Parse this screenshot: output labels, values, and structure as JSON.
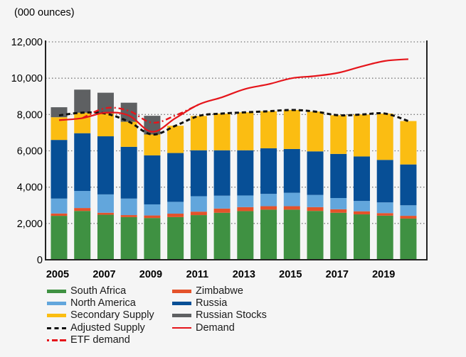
{
  "chart_data": {
    "type": "bar",
    "stacked": true,
    "title": "",
    "unit_label": "(000 ounces)",
    "xlabel": "",
    "ylabel": "(000 ounces)",
    "ylim": [
      0,
      12000
    ],
    "yticks": [
      0,
      2000,
      4000,
      6000,
      8000,
      10000,
      12000
    ],
    "ytick_labels": [
      "0",
      "2,000",
      "4,000",
      "6,000",
      "8,000",
      "10,000",
      "12,000"
    ],
    "categories": [
      "2005",
      "2006",
      "2007",
      "2008",
      "2009",
      "2010",
      "2011",
      "2012",
      "2013",
      "2014",
      "2015",
      "2016",
      "2017",
      "2018",
      "2019",
      "2020"
    ],
    "xtick_labels": [
      "2005",
      "",
      "2007",
      "",
      "2009",
      "",
      "2011",
      "",
      "2013",
      "",
      "2015",
      "",
      "2017",
      "",
      "2019",
      ""
    ],
    "grid": "horizontal-dotted",
    "legend_position": "bottom",
    "series": [
      {
        "name": "South Africa",
        "kind": "bar",
        "color": "#3f9142",
        "values": [
          2420,
          2690,
          2480,
          2350,
          2300,
          2350,
          2460,
          2590,
          2680,
          2760,
          2760,
          2690,
          2590,
          2500,
          2430,
          2270
        ]
      },
      {
        "name": "Zimbabwe",
        "kind": "bar",
        "color": "#e4522a",
        "values": [
          130,
          160,
          110,
          110,
          140,
          190,
          190,
          230,
          220,
          190,
          190,
          210,
          190,
          170,
          140,
          150
        ]
      },
      {
        "name": "North America",
        "kind": "bar",
        "color": "#62a6dc",
        "values": [
          820,
          940,
          1010,
          910,
          610,
          650,
          850,
          710,
          640,
          680,
          740,
          670,
          620,
          570,
          590,
          580
        ]
      },
      {
        "name": "Russia",
        "kind": "bar",
        "color": "#074f96",
        "values": [
          3230,
          3180,
          3200,
          2850,
          2700,
          2690,
          2530,
          2500,
          2490,
          2510,
          2410,
          2400,
          2430,
          2450,
          2340,
          2250
        ]
      },
      {
        "name": "Secondary Supply",
        "kind": "bar",
        "color": "#fbbd12",
        "values": [
          1250,
          1130,
          1250,
          1380,
          1150,
          1500,
          1890,
          2020,
          2090,
          2040,
          2150,
          2190,
          2130,
          2310,
          2550,
          2390
        ]
      },
      {
        "name": "Russian Stocks",
        "kind": "bar",
        "color": "#5e6062",
        "values": [
          550,
          1270,
          1150,
          1050,
          1030,
          0,
          0,
          0,
          0,
          0,
          0,
          0,
          0,
          0,
          0,
          0
        ]
      },
      {
        "name": "Adjusted Supply",
        "kind": "line",
        "style": "dashed",
        "color": "#111111",
        "values": [
          7950,
          8100,
          8050,
          7600,
          6900,
          7380,
          7920,
          8050,
          8120,
          8180,
          8250,
          8160,
          7960,
          8000,
          8050,
          7640
        ]
      },
      {
        "name": "Demand",
        "kind": "line",
        "style": "solid",
        "color": "#e5151b",
        "values": [
          7690,
          7800,
          8100,
          7940,
          7050,
          7800,
          8550,
          8950,
          9410,
          9670,
          10000,
          10120,
          10300,
          10650,
          10950,
          11050
        ]
      },
      {
        "name": "ETF demand",
        "kind": "line",
        "style": "dash-dot",
        "color": "#e5151b",
        "values": [
          null,
          7800,
          8350,
          8200,
          7550,
          7950,
          8550,
          null,
          null,
          null,
          null,
          null,
          null,
          null,
          null,
          null
        ]
      }
    ]
  },
  "legend": {
    "items": [
      {
        "label": "South Africa",
        "type": "swatch",
        "color": "#3f9142"
      },
      {
        "label": "Zimbabwe",
        "type": "swatch",
        "color": "#e4522a"
      },
      {
        "label": "North America",
        "type": "swatch",
        "color": "#62a6dc"
      },
      {
        "label": "Russia",
        "type": "swatch",
        "color": "#074f96"
      },
      {
        "label": "Secondary Supply",
        "type": "swatch",
        "color": "#fbbd12"
      },
      {
        "label": "Russian Stocks",
        "type": "swatch",
        "color": "#5e6062"
      },
      {
        "label": "Adjusted Supply",
        "type": "dashed",
        "color": "#111111"
      },
      {
        "label": "Demand",
        "type": "solid",
        "color": "#e5151b"
      },
      {
        "label": "ETF demand",
        "type": "dashdot",
        "color": "#e5151b"
      }
    ]
  }
}
